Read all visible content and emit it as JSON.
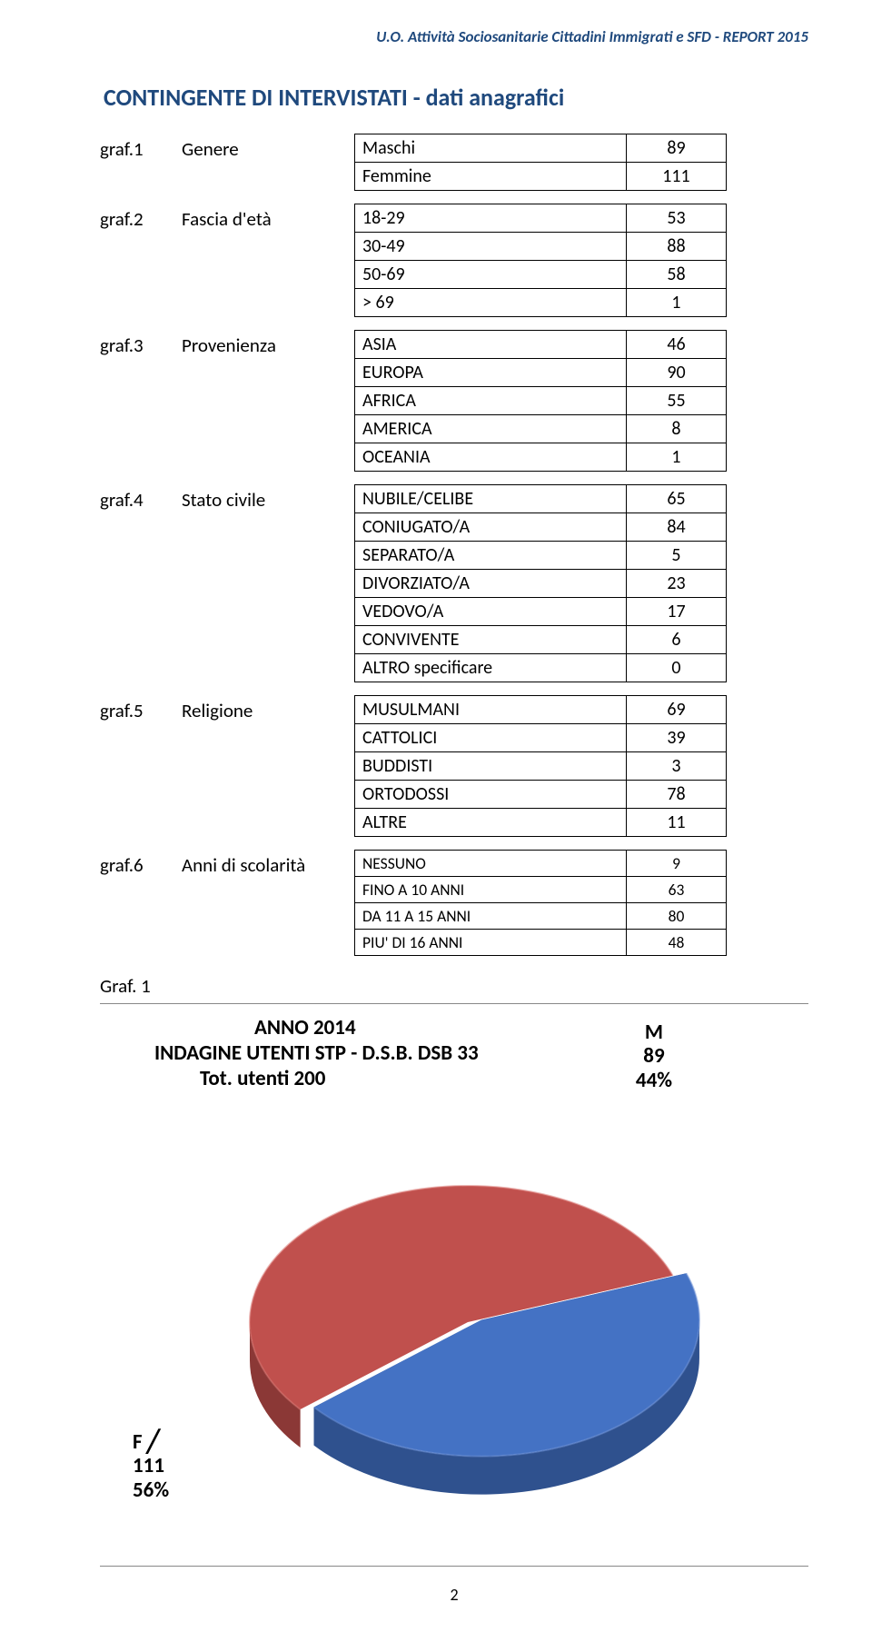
{
  "header": "U.O. Attività Sociosanitarie Cittadini Immigrati e SFD - REPORT 2015",
  "section_title": "CONTINGENTE DI INTERVISTATI - dati anagrafici",
  "tables": [
    {
      "id": "graf.1",
      "label": "Genere",
      "tight": false,
      "rows": [
        {
          "k": "Maschi",
          "v": "89"
        },
        {
          "k": "Femmine",
          "v": "111"
        }
      ]
    },
    {
      "id": "graf.2",
      "label": "Fascia d'età",
      "tight": false,
      "rows": [
        {
          "k": "18-29",
          "v": "53"
        },
        {
          "k": "30-49",
          "v": "88"
        },
        {
          "k": "50-69",
          "v": "58"
        },
        {
          "k": "> 69",
          "v": "1"
        }
      ]
    },
    {
      "id": "graf.3",
      "label": "Provenienza",
      "tight": false,
      "rows": [
        {
          "k": "ASIA",
          "v": "46"
        },
        {
          "k": "EUROPA",
          "v": "90"
        },
        {
          "k": "AFRICA",
          "v": "55"
        },
        {
          "k": "AMERICA",
          "v": "8"
        },
        {
          "k": "OCEANIA",
          "v": "1"
        }
      ]
    },
    {
      "id": "graf.4",
      "label": "Stato civile",
      "tight": false,
      "rows": [
        {
          "k": "NUBILE/CELIBE",
          "v": "65"
        },
        {
          "k": "CONIUGATO/A",
          "v": "84"
        },
        {
          "k": "SEPARATO/A",
          "v": "5"
        },
        {
          "k": "DIVORZIATO/A",
          "v": "23"
        },
        {
          "k": "VEDOVO/A",
          "v": "17"
        },
        {
          "k": "CONVIVENTE",
          "v": "6"
        },
        {
          "k": "ALTRO specificare",
          "v": "0"
        }
      ]
    },
    {
      "id": "graf.5",
      "label": "Religione",
      "tight": false,
      "rows": [
        {
          "k": "MUSULMANI",
          "v": "69"
        },
        {
          "k": "CATTOLICI",
          "v": "39"
        },
        {
          "k": "BUDDISTI",
          "v": "3"
        },
        {
          "k": "ORTODOSSI",
          "v": "78"
        },
        {
          "k": "ALTRE",
          "v": "11"
        }
      ]
    },
    {
      "id": "graf.6",
      "label": "Anni di scolarità",
      "tight": true,
      "rows": [
        {
          "k": "NESSUNO",
          "v": "9"
        },
        {
          "k": "FINO A 10 ANNI",
          "v": "63"
        },
        {
          "k": "DA 11 A 15 ANNI",
          "v": "80"
        },
        {
          "k": "PIU' DI 16 ANNI",
          "v": "48"
        }
      ]
    }
  ],
  "chart": {
    "caption": "Graf. 1",
    "type": "pie-3d",
    "title_line1": "ANNO 2014",
    "title_line2": "INDAGINE UTENTI STP - D.S.B. DSB 33",
    "title_line3": "Tot. utenti 200",
    "slices": [
      {
        "name": "M",
        "value": 89,
        "percent": "44%",
        "color": "#4472c4",
        "highlight": "#6b8fd6",
        "shadow": "#2f518e"
      },
      {
        "name": "F",
        "value": 111,
        "percent": "56%",
        "color": "#c0504d",
        "highlight": "#d9736f",
        "shadow": "#8b3836"
      }
    ],
    "m_label": {
      "l1": "M",
      "l2": "89",
      "l3": "44%"
    },
    "f_label": {
      "l1": "F",
      "l2": "111",
      "l3": "56%"
    },
    "background": "#ffffff"
  },
  "page_number": "2"
}
